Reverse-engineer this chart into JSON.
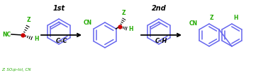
{
  "bg_color": "#ffffff",
  "blue_color": "#6666ee",
  "green_color": "#22aa00",
  "red_color": "#cc0000",
  "black_color": "#000000",
  "label_1st": "1st",
  "label_2nd": "2nd",
  "label_CC": "C–C",
  "label_CH": "C–H",
  "label_Z": "Z",
  "label_CN": "CN",
  "label_H": "H",
  "label_NC": "NC",
  "label_footer": "Z: SO₂p-tol, CN",
  "figsize": [
    3.78,
    1.07
  ],
  "dpi": 100,
  "scale": 107
}
